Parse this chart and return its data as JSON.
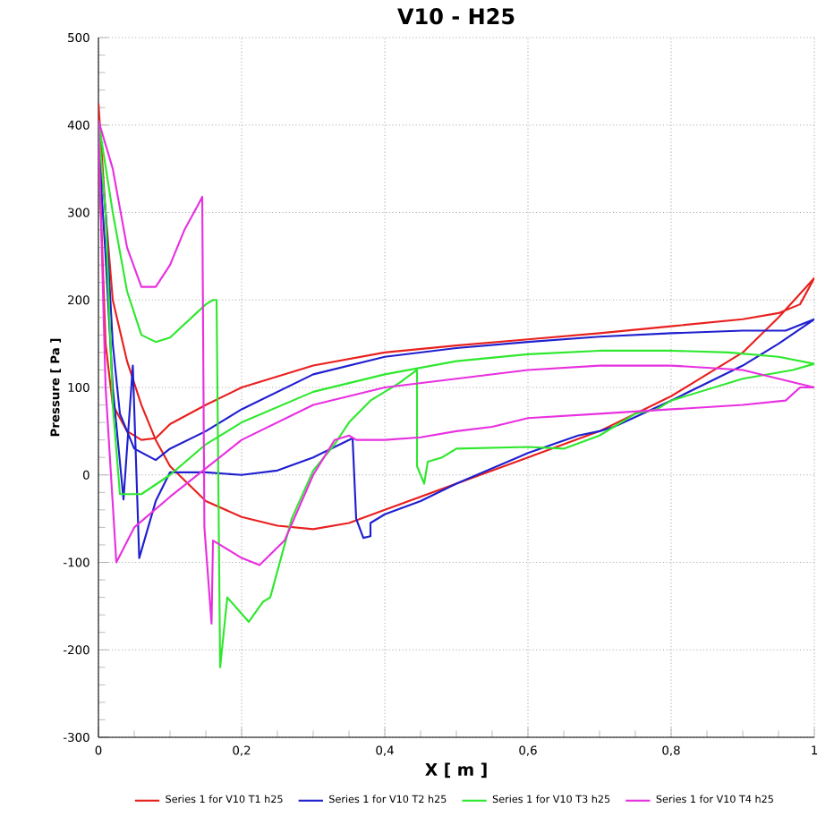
{
  "chart_data": {
    "type": "line",
    "title": "V10 - H25",
    "xlabel": "X [ m ]",
    "ylabel": "Pressure [ Pa ]",
    "xlim": [
      0,
      1
    ],
    "ylim": [
      -300,
      500
    ],
    "xticks": [
      0,
      {
        "value": 0.2,
        "label": "0,2"
      },
      {
        "value": 0.4,
        "label": "0,4"
      },
      {
        "value": 0.6,
        "label": "0,6"
      },
      {
        "value": 0.8,
        "label": "0,8"
      },
      1
    ],
    "yticks": [
      -300,
      -200,
      -100,
      0,
      100,
      200,
      300,
      400,
      500
    ],
    "grid": true,
    "legend": "bottom",
    "marker": "none",
    "line_style": "solid",
    "series": [
      {
        "name": "Series 1 for V10 T1 h25",
        "color": "#e8201e",
        "x": [
          0,
          0.01,
          0.02,
          0.04,
          0.06,
          0.08,
          0.1,
          0.15,
          0.2,
          0.25,
          0.3,
          0.35,
          0.4,
          0.5,
          0.6,
          0.7,
          0.8,
          0.9,
          0.95,
          1.0,
          0.98,
          0.95,
          0.9,
          0.8,
          0.7,
          0.6,
          0.5,
          0.4,
          0.3,
          0.2,
          0.15,
          0.1,
          0.08,
          0.06,
          0.04,
          0.02,
          0.01,
          0
        ],
        "values": [
          425,
          300,
          200,
          130,
          80,
          40,
          10,
          -30,
          -48,
          -58,
          -62,
          -55,
          -40,
          -10,
          20,
          50,
          90,
          140,
          180,
          225,
          195,
          185,
          178,
          170,
          162,
          155,
          148,
          140,
          125,
          100,
          80,
          58,
          42,
          40,
          50,
          80,
          150,
          380
        ]
      },
      {
        "name": "Series 1 for V10 T2 h25",
        "color": "#1f1fcf",
        "x": [
          0,
          0.01,
          0.02,
          0.03,
          0.05,
          0.08,
          0.1,
          0.15,
          0.2,
          0.3,
          0.4,
          0.5,
          0.6,
          0.7,
          0.8,
          0.9,
          0.96,
          1.0,
          0.95,
          0.9,
          0.8,
          0.72,
          0.7,
          0.67,
          0.6,
          0.5,
          0.45,
          0.4,
          0.38,
          0.38,
          0.37,
          0.36,
          0.355,
          0.3,
          0.25,
          0.2,
          0.15,
          0.1,
          0.08,
          0.057,
          0.048,
          0.035,
          0.02,
          0.01,
          0
        ],
        "values": [
          390,
          300,
          150,
          70,
          30,
          17,
          30,
          50,
          75,
          115,
          135,
          145,
          152,
          158,
          162,
          165,
          165,
          178,
          150,
          125,
          85,
          55,
          50,
          45,
          25,
          -10,
          -30,
          -45,
          -55,
          -70,
          -72,
          -50,
          42,
          20,
          5,
          0,
          3,
          3,
          -30,
          -95,
          125,
          -28,
          100,
          250,
          380
        ]
      },
      {
        "name": "Series 1 for V10 T3 h25",
        "color": "#2ee82e",
        "x": [
          0,
          0.02,
          0.04,
          0.06,
          0.08,
          0.1,
          0.15,
          0.16,
          0.165,
          0.17,
          0.18,
          0.21,
          0.23,
          0.24,
          0.27,
          0.3,
          0.33,
          0.35,
          0.38,
          0.42,
          0.445,
          0.445,
          0.455,
          0.46,
          0.48,
          0.5,
          0.6,
          0.65,
          0.7,
          0.72,
          0.75,
          0.78,
          0.8,
          0.9,
          0.97,
          1.0,
          0.95,
          0.88,
          0.8,
          0.7,
          0.6,
          0.5,
          0.4,
          0.3,
          0.2,
          0.15,
          0.1,
          0.06,
          0.03,
          0.02,
          0.01,
          0
        ],
        "values": [
          405,
          300,
          210,
          160,
          152,
          157,
          195,
          200,
          200,
          -220,
          -140,
          -168,
          -145,
          -140,
          -50,
          5,
          35,
          60,
          85,
          105,
          120,
          10,
          -10,
          15,
          20,
          30,
          32,
          30,
          45,
          55,
          70,
          75,
          85,
          110,
          120,
          127,
          135,
          140,
          142,
          142,
          138,
          130,
          115,
          95,
          60,
          35,
          0,
          -22,
          -22,
          80,
          300,
          398
        ]
      },
      {
        "name": "Series 1 for V10 T4 h25",
        "color": "#e830e0",
        "x": [
          0,
          0.02,
          0.04,
          0.06,
          0.08,
          0.1,
          0.12,
          0.14,
          0.145,
          0.148,
          0.158,
          0.16,
          0.2,
          0.225,
          0.26,
          0.3,
          0.33,
          0.35,
          0.36,
          0.4,
          0.45,
          0.5,
          0.55,
          0.6,
          0.7,
          0.8,
          0.9,
          0.96,
          0.98,
          1.0,
          0.95,
          0.9,
          0.8,
          0.7,
          0.6,
          0.5,
          0.4,
          0.3,
          0.2,
          0.1,
          0.05,
          0.025,
          0.01,
          0
        ],
        "values": [
          405,
          350,
          260,
          215,
          215,
          240,
          280,
          310,
          318,
          -60,
          -170,
          -75,
          -95,
          -103,
          -75,
          0,
          40,
          45,
          40,
          40,
          43,
          50,
          55,
          65,
          70,
          75,
          80,
          85,
          100,
          100,
          110,
          120,
          125,
          125,
          120,
          110,
          100,
          80,
          40,
          -25,
          -60,
          -100,
          100,
          398
        ]
      }
    ]
  }
}
